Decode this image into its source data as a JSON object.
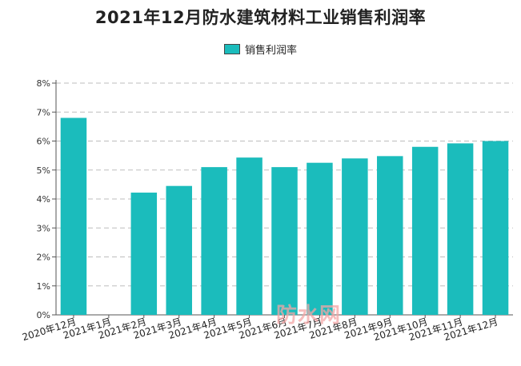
{
  "chart_data": {
    "type": "bar",
    "title": "2021年12月防水建筑材料工业销售利润率",
    "series": [
      {
        "name": "销售利润率",
        "values": [
          6.8,
          null,
          4.22,
          4.45,
          5.1,
          5.43,
          5.1,
          5.25,
          5.4,
          5.48,
          5.8,
          5.92,
          6.0
        ]
      }
    ],
    "categories": [
      "2020年12月",
      "2021年1月",
      "2021年2月",
      "2021年3月",
      "2021年4月",
      "2021年5月",
      "2021年6月",
      "2021年7月",
      "2021年8月",
      "2021年9月",
      "2021年10月",
      "2021年11月",
      "2021年12月"
    ],
    "y_ticks": [
      "0%",
      "1%",
      "2%",
      "3%",
      "4%",
      "5%",
      "6%",
      "7%",
      "8%"
    ],
    "ylim": [
      0,
      8
    ],
    "grid": true,
    "legend_position": "top",
    "bar_color": "#1bbcbc"
  },
  "watermark": "防水网"
}
